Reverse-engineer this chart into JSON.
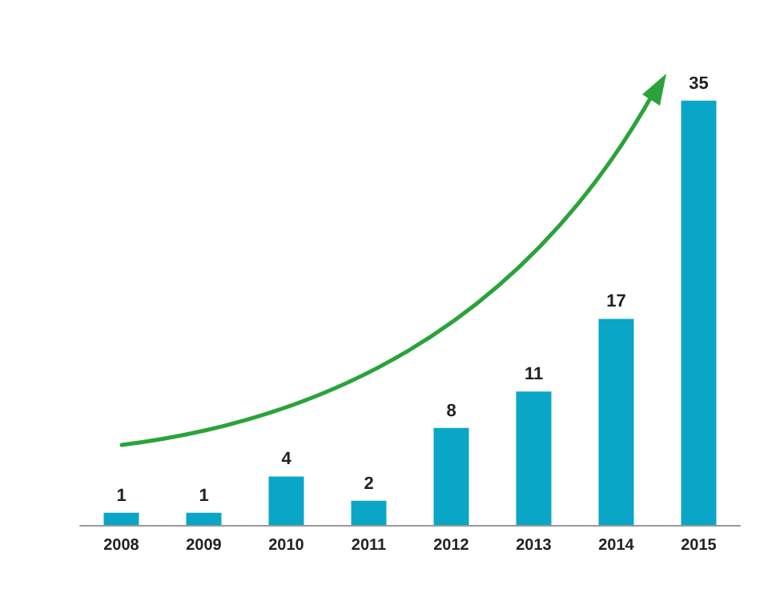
{
  "chart_data": {
    "type": "bar",
    "categories": [
      "2008",
      "2009",
      "2010",
      "2011",
      "2012",
      "2013",
      "2014",
      "2015"
    ],
    "values": [
      1,
      1,
      4,
      2,
      8,
      11,
      17,
      35
    ],
    "color": "#0aa6c8",
    "data_labels": true
  }
}
